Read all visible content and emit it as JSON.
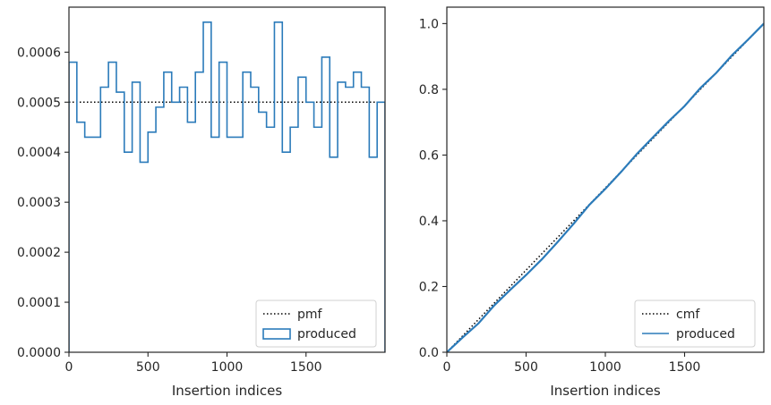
{
  "chart_data": [
    {
      "type": "step",
      "xlabel": "Insertion indices",
      "ylabel": "",
      "xlim": [
        0,
        2000
      ],
      "ylim": [
        0,
        0.00069
      ],
      "xticks": [
        0,
        500,
        1000,
        1500
      ],
      "xtick_labels": [
        "0",
        "500",
        "1000",
        "1500"
      ],
      "yticks": [
        0,
        0.0001,
        0.0002,
        0.0003,
        0.0004,
        0.0005,
        0.0006
      ],
      "ytick_labels": [
        "0.0000",
        "0.0001",
        "0.0002",
        "0.0003",
        "0.0004",
        "0.0005",
        "0.0006"
      ],
      "legend_position": "lower-right",
      "series": [
        {
          "name": "pmf",
          "kind": "line",
          "style": "dotted",
          "color": "#000000",
          "x": [
            0,
            2000
          ],
          "y": [
            0.0005,
            0.0005
          ]
        },
        {
          "name": "produced",
          "kind": "histogram-step",
          "color": "#2b7bba",
          "bin_width": 50,
          "bin_starts": [
            0,
            50,
            100,
            150,
            200,
            250,
            300,
            350,
            400,
            450,
            500,
            550,
            600,
            650,
            700,
            750,
            800,
            850,
            900,
            950,
            1000,
            1050,
            1100,
            1150,
            1200,
            1250,
            1300,
            1350,
            1400,
            1450,
            1500,
            1550,
            1600,
            1650,
            1700,
            1750,
            1800,
            1850,
            1900,
            1950
          ],
          "values": [
            0.00058,
            0.00046,
            0.00043,
            0.00043,
            0.00053,
            0.00058,
            0.00052,
            0.0004,
            0.00054,
            0.00038,
            0.00044,
            0.00049,
            0.00056,
            0.0005,
            0.00053,
            0.00046,
            0.00056,
            0.00066,
            0.00043,
            0.00058,
            0.00043,
            0.00043,
            0.00056,
            0.00053,
            0.00048,
            0.00045,
            0.00066,
            0.0004,
            0.00045,
            0.00055,
            0.0005,
            0.00045,
            0.00059,
            0.00039,
            0.00054,
            0.00053,
            0.00056,
            0.00053,
            0.00039,
            0.0005
          ]
        }
      ]
    },
    {
      "type": "line",
      "xlabel": "Insertion indices",
      "ylabel": "",
      "xlim": [
        0,
        2000
      ],
      "ylim": [
        0,
        1.05
      ],
      "xticks": [
        0,
        500,
        1000,
        1500
      ],
      "xtick_labels": [
        "0",
        "500",
        "1000",
        "1500"
      ],
      "yticks": [
        0,
        0.2,
        0.4,
        0.6,
        0.8,
        1.0
      ],
      "ytick_labels": [
        "0.0",
        "0.2",
        "0.4",
        "0.6",
        "0.8",
        "1.0"
      ],
      "legend_position": "lower-right",
      "series": [
        {
          "name": "cmf",
          "kind": "line",
          "style": "dotted",
          "color": "#000000",
          "x": [
            0,
            2000
          ],
          "y": [
            0,
            1.0
          ]
        },
        {
          "name": "produced",
          "kind": "line",
          "color": "#2b7bba",
          "x": [
            0,
            100,
            200,
            300,
            400,
            500,
            600,
            700,
            800,
            900,
            1000,
            1100,
            1200,
            1300,
            1400,
            1500,
            1600,
            1700,
            1800,
            1900,
            2000
          ],
          "y": [
            0,
            0.045,
            0.088,
            0.143,
            0.19,
            0.235,
            0.283,
            0.336,
            0.391,
            0.449,
            0.497,
            0.549,
            0.604,
            0.654,
            0.703,
            0.749,
            0.804,
            0.85,
            0.904,
            0.951,
            1.0
          ]
        }
      ]
    }
  ]
}
